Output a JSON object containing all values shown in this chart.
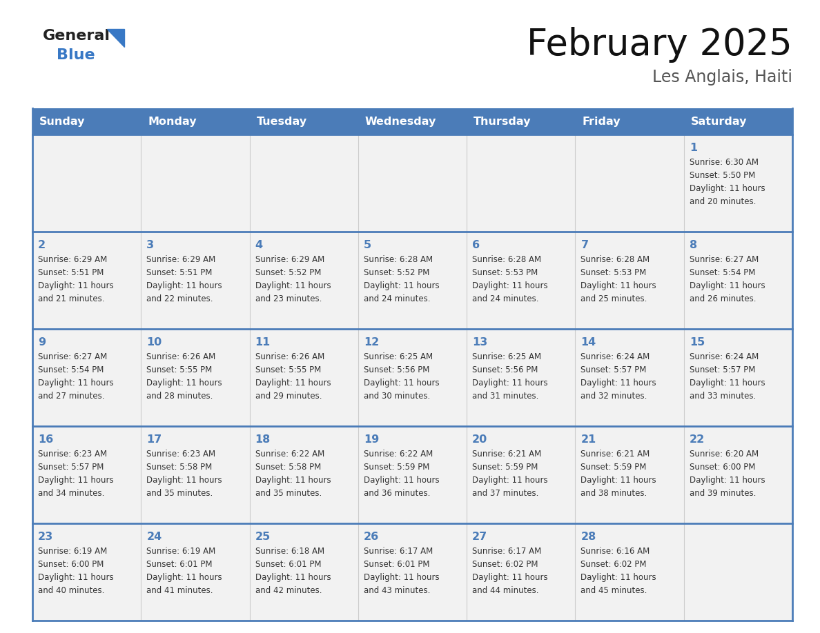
{
  "title": "February 2025",
  "subtitle": "Les Anglais, Haiti",
  "days_of_week": [
    "Sunday",
    "Monday",
    "Tuesday",
    "Wednesday",
    "Thursday",
    "Friday",
    "Saturday"
  ],
  "header_bg": "#4B7CB8",
  "header_text_color": "#FFFFFF",
  "row_odd_bg": "#F2F2F2",
  "row_even_bg": "#FFFFFF",
  "border_color": "#4B7CB8",
  "day_num_color": "#4B7CB8",
  "text_color": "#333333",
  "logo_general_color": "#222222",
  "logo_blue_color": "#3878C5",
  "logo_triangle_color": "#3878C5",
  "calendar_data": [
    [
      null,
      null,
      null,
      null,
      null,
      null,
      {
        "day": "1",
        "sunrise": "6:30 AM",
        "sunset": "5:50 PM",
        "daylight_line1": "Daylight: 11 hours",
        "daylight_line2": "and 20 minutes."
      }
    ],
    [
      {
        "day": "2",
        "sunrise": "6:29 AM",
        "sunset": "5:51 PM",
        "daylight_line1": "Daylight: 11 hours",
        "daylight_line2": "and 21 minutes."
      },
      {
        "day": "3",
        "sunrise": "6:29 AM",
        "sunset": "5:51 PM",
        "daylight_line1": "Daylight: 11 hours",
        "daylight_line2": "and 22 minutes."
      },
      {
        "day": "4",
        "sunrise": "6:29 AM",
        "sunset": "5:52 PM",
        "daylight_line1": "Daylight: 11 hours",
        "daylight_line2": "and 23 minutes."
      },
      {
        "day": "5",
        "sunrise": "6:28 AM",
        "sunset": "5:52 PM",
        "daylight_line1": "Daylight: 11 hours",
        "daylight_line2": "and 24 minutes."
      },
      {
        "day": "6",
        "sunrise": "6:28 AM",
        "sunset": "5:53 PM",
        "daylight_line1": "Daylight: 11 hours",
        "daylight_line2": "and 24 minutes."
      },
      {
        "day": "7",
        "sunrise": "6:28 AM",
        "sunset": "5:53 PM",
        "daylight_line1": "Daylight: 11 hours",
        "daylight_line2": "and 25 minutes."
      },
      {
        "day": "8",
        "sunrise": "6:27 AM",
        "sunset": "5:54 PM",
        "daylight_line1": "Daylight: 11 hours",
        "daylight_line2": "and 26 minutes."
      }
    ],
    [
      {
        "day": "9",
        "sunrise": "6:27 AM",
        "sunset": "5:54 PM",
        "daylight_line1": "Daylight: 11 hours",
        "daylight_line2": "and 27 minutes."
      },
      {
        "day": "10",
        "sunrise": "6:26 AM",
        "sunset": "5:55 PM",
        "daylight_line1": "Daylight: 11 hours",
        "daylight_line2": "and 28 minutes."
      },
      {
        "day": "11",
        "sunrise": "6:26 AM",
        "sunset": "5:55 PM",
        "daylight_line1": "Daylight: 11 hours",
        "daylight_line2": "and 29 minutes."
      },
      {
        "day": "12",
        "sunrise": "6:25 AM",
        "sunset": "5:56 PM",
        "daylight_line1": "Daylight: 11 hours",
        "daylight_line2": "and 30 minutes."
      },
      {
        "day": "13",
        "sunrise": "6:25 AM",
        "sunset": "5:56 PM",
        "daylight_line1": "Daylight: 11 hours",
        "daylight_line2": "and 31 minutes."
      },
      {
        "day": "14",
        "sunrise": "6:24 AM",
        "sunset": "5:57 PM",
        "daylight_line1": "Daylight: 11 hours",
        "daylight_line2": "and 32 minutes."
      },
      {
        "day": "15",
        "sunrise": "6:24 AM",
        "sunset": "5:57 PM",
        "daylight_line1": "Daylight: 11 hours",
        "daylight_line2": "and 33 minutes."
      }
    ],
    [
      {
        "day": "16",
        "sunrise": "6:23 AM",
        "sunset": "5:57 PM",
        "daylight_line1": "Daylight: 11 hours",
        "daylight_line2": "and 34 minutes."
      },
      {
        "day": "17",
        "sunrise": "6:23 AM",
        "sunset": "5:58 PM",
        "daylight_line1": "Daylight: 11 hours",
        "daylight_line2": "and 35 minutes."
      },
      {
        "day": "18",
        "sunrise": "6:22 AM",
        "sunset": "5:58 PM",
        "daylight_line1": "Daylight: 11 hours",
        "daylight_line2": "and 35 minutes."
      },
      {
        "day": "19",
        "sunrise": "6:22 AM",
        "sunset": "5:59 PM",
        "daylight_line1": "Daylight: 11 hours",
        "daylight_line2": "and 36 minutes."
      },
      {
        "day": "20",
        "sunrise": "6:21 AM",
        "sunset": "5:59 PM",
        "daylight_line1": "Daylight: 11 hours",
        "daylight_line2": "and 37 minutes."
      },
      {
        "day": "21",
        "sunrise": "6:21 AM",
        "sunset": "5:59 PM",
        "daylight_line1": "Daylight: 11 hours",
        "daylight_line2": "and 38 minutes."
      },
      {
        "day": "22",
        "sunrise": "6:20 AM",
        "sunset": "6:00 PM",
        "daylight_line1": "Daylight: 11 hours",
        "daylight_line2": "and 39 minutes."
      }
    ],
    [
      {
        "day": "23",
        "sunrise": "6:19 AM",
        "sunset": "6:00 PM",
        "daylight_line1": "Daylight: 11 hours",
        "daylight_line2": "and 40 minutes."
      },
      {
        "day": "24",
        "sunrise": "6:19 AM",
        "sunset": "6:01 PM",
        "daylight_line1": "Daylight: 11 hours",
        "daylight_line2": "and 41 minutes."
      },
      {
        "day": "25",
        "sunrise": "6:18 AM",
        "sunset": "6:01 PM",
        "daylight_line1": "Daylight: 11 hours",
        "daylight_line2": "and 42 minutes."
      },
      {
        "day": "26",
        "sunrise": "6:17 AM",
        "sunset": "6:01 PM",
        "daylight_line1": "Daylight: 11 hours",
        "daylight_line2": "and 43 minutes."
      },
      {
        "day": "27",
        "sunrise": "6:17 AM",
        "sunset": "6:02 PM",
        "daylight_line1": "Daylight: 11 hours",
        "daylight_line2": "and 44 minutes."
      },
      {
        "day": "28",
        "sunrise": "6:16 AM",
        "sunset": "6:02 PM",
        "daylight_line1": "Daylight: 11 hours",
        "daylight_line2": "and 45 minutes."
      },
      null
    ]
  ]
}
